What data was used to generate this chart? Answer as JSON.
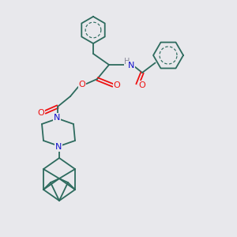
{
  "bg_color": "#e8e8ec",
  "bond_color": "#2d6b5e",
  "atom_colors": {
    "O": "#ee1111",
    "N": "#1111cc",
    "H": "#888899",
    "C": "#2d6b5e"
  },
  "figsize": [
    3.0,
    3.0
  ],
  "dpi": 100
}
